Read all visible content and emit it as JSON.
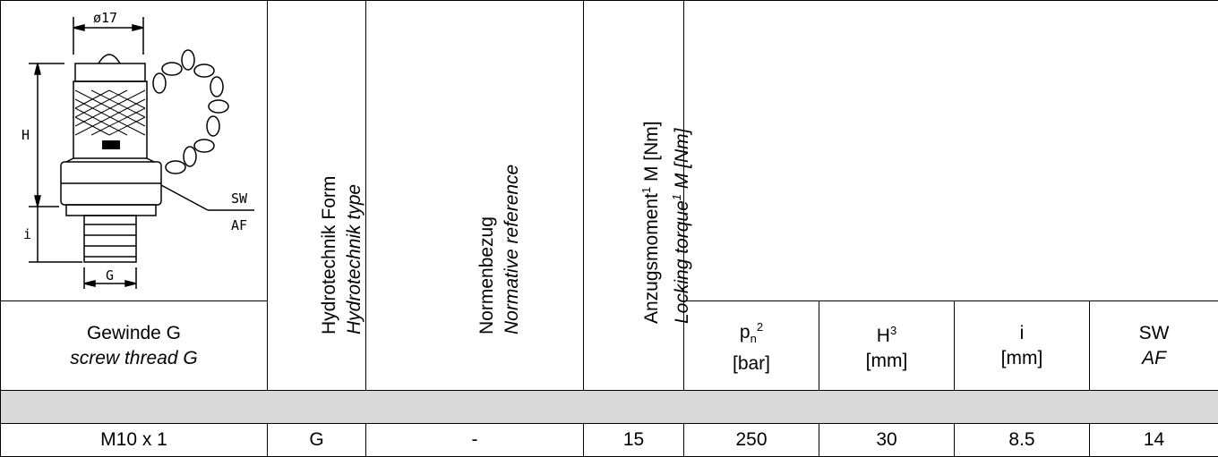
{
  "header": {
    "thread_de": "Gewinde G",
    "thread_en": "screw thread G",
    "type_de": "Hydrotechnik Form",
    "type_en": "Hydrotechnik type",
    "norm_de": "Normenbezug",
    "norm_en": "Normative reference",
    "torque_de": "Anzugsmoment",
    "torque_de_unit": "M [Nm]",
    "torque_en": "Locking torque",
    "torque_en_unit": "M [Nm]",
    "torque_sup": "1",
    "pn_sym": "p",
    "pn_sub": "n",
    "pn_sup": "2",
    "pn_unit": "[bar]",
    "h_sym": "H",
    "h_sup": "3",
    "h_unit": "[mm]",
    "i_sym": "i",
    "i_unit": "[mm]",
    "sw_de": "SW",
    "sw_en": "AF"
  },
  "drawing": {
    "dim_top": "ø17",
    "dim_h": "H",
    "dim_i": "i",
    "dim_g": "G",
    "dim_sw": "SW",
    "dim_af": "AF"
  },
  "rows": [
    {
      "thread": "M10 x 1",
      "type": "G",
      "norm": "-",
      "torque": "15",
      "pn": "250",
      "h": "30",
      "i": "8.5",
      "sw": "14"
    }
  ]
}
